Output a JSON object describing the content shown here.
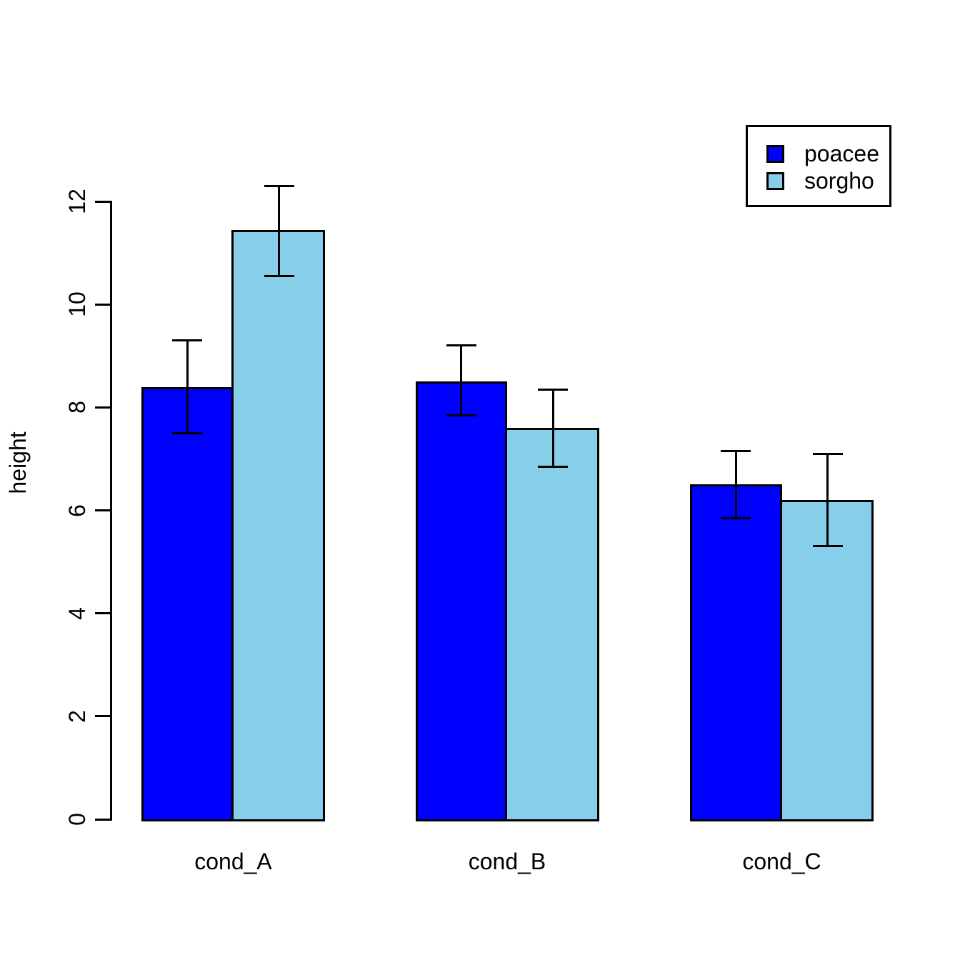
{
  "figure": {
    "background": "#FFFFFF",
    "axis_color": "#000000"
  },
  "chart_data": {
    "type": "bar",
    "title": "",
    "xlabel": "",
    "ylabel": "height",
    "categories": [
      "cond_A",
      "cond_B",
      "cond_C"
    ],
    "series": [
      {
        "name": "poacee",
        "color": "#0000FF",
        "values": [
          8.4,
          8.5,
          6.5
        ],
        "error_low": [
          7.5,
          7.85,
          5.85
        ],
        "error_high": [
          9.3,
          9.2,
          7.15
        ]
      },
      {
        "name": "sorgho",
        "color": "#87CEEB",
        "values": [
          11.45,
          7.6,
          6.2
        ],
        "error_low": [
          10.55,
          6.85,
          5.3
        ],
        "error_high": [
          12.3,
          8.35,
          7.1
        ]
      }
    ],
    "y_ticks": [
      "0",
      "2",
      "4",
      "6",
      "8",
      "10",
      "12"
    ],
    "ylim": [
      0,
      12.4
    ],
    "grid": false,
    "bar_border_color": "#000000",
    "error_bar_color": "#000000",
    "legend_position": "top-right",
    "legend_entries": [
      "poacee",
      "sorgho"
    ]
  }
}
